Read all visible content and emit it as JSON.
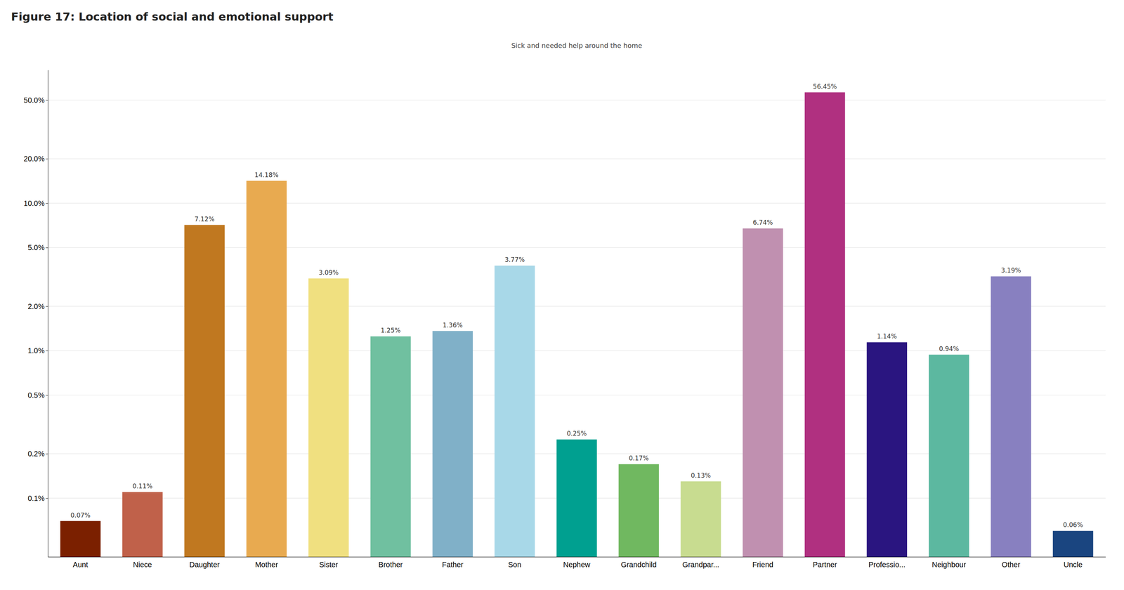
{
  "chart_data": {
    "type": "bar",
    "title": "Figure 17: Location of social and emotional support",
    "subtitle": "Sick and needed help around the home",
    "categories": [
      "Aunt",
      "Niece",
      "Daughter",
      "Mother",
      "Sister",
      "Brother",
      "Father",
      "Son",
      "Nephew",
      "Grandchild",
      "Grandpar...",
      "Friend",
      "Partner",
      "Professio...",
      "Neighbour",
      "Other",
      "Uncle"
    ],
    "values": [
      0.07,
      0.11,
      7.12,
      14.18,
      3.09,
      1.25,
      1.36,
      3.77,
      0.25,
      0.17,
      0.13,
      6.74,
      56.45,
      1.14,
      0.94,
      3.19,
      0.06
    ],
    "value_labels": [
      "0.07%",
      "0.11%",
      "7.12%",
      "14.18%",
      "3.09%",
      "1.25%",
      "1.36%",
      "3.77%",
      "0.25%",
      "0.17%",
      "0.13%",
      "6.74%",
      "56.45%",
      "1.14%",
      "0.94%",
      "3.19%",
      "0.06%"
    ],
    "colors": [
      "#7B2000",
      "#C0614A",
      "#C07820",
      "#E8AA50",
      "#F0E080",
      "#70C0A0",
      "#80B0C8",
      "#A8D8E8",
      "#00A090",
      "#70B860",
      "#C8DC90",
      "#C090B0",
      "#B03080",
      "#2A1580",
      "#5CB8A0",
      "#8880C0",
      "#1A4580"
    ],
    "ylim": [
      0.04,
      80.0
    ],
    "yticks": [
      {
        "value": 0.1,
        "label": "0.1%"
      },
      {
        "value": 0.2,
        "label": "0.2%"
      },
      {
        "value": 0.5,
        "label": "0.5%"
      },
      {
        "value": 1.0,
        "label": "1.0%"
      },
      {
        "value": 2.0,
        "label": "2.0%"
      },
      {
        "value": 5.0,
        "label": "5.0%"
      },
      {
        "value": 10.0,
        "label": "10.0%"
      },
      {
        "value": 20.0,
        "label": "20.0%"
      },
      {
        "value": 50.0,
        "label": "50.0%"
      }
    ],
    "log": "y",
    "grid": true,
    "data_labels": true
  }
}
